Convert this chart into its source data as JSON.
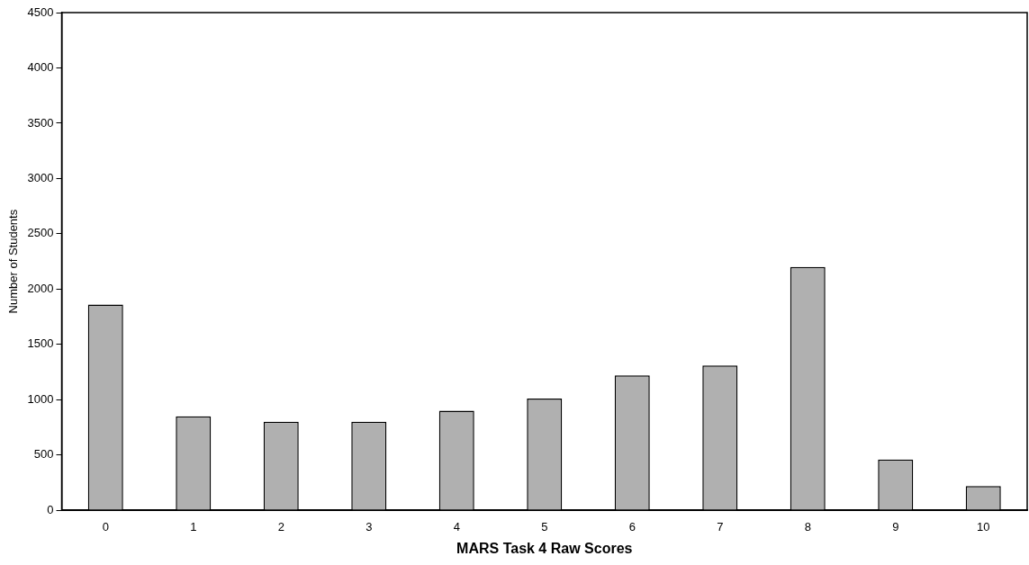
{
  "chart_data": {
    "type": "bar",
    "xlabel": "MARS Task 4 Raw Scores",
    "ylabel": "Number of Students",
    "categories": [
      "0",
      "1",
      "2",
      "3",
      "4",
      "5",
      "6",
      "7",
      "8",
      "9",
      "10"
    ],
    "values": [
      1860,
      850,
      800,
      800,
      900,
      1010,
      1220,
      1310,
      2200,
      460,
      220
    ],
    "color": "#b0b0b0",
    "ylim": [
      0,
      4500
    ],
    "yticks": [
      0,
      500,
      1000,
      1500,
      2000,
      2500,
      3000,
      3500,
      4000,
      4500
    ],
    "grid": false,
    "legend": false
  }
}
